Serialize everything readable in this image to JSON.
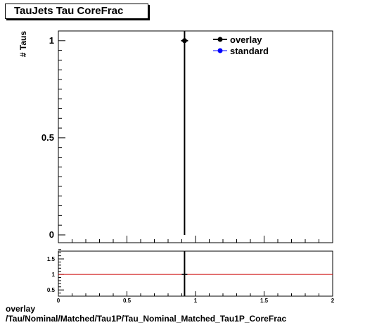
{
  "title": "TauJets Tau CoreFrac",
  "footer": {
    "line1": "overlay",
    "line2": "/Tau/Nominal/Matched/Tau1P/Tau_Nominal_Matched_Tau1P_CoreFrac"
  },
  "colors": {
    "overlay": "#000000",
    "standard": "#0000ff",
    "ratio_line": "#cc0000"
  },
  "chart_data": [
    {
      "type": "scatter",
      "ylabel": "# Taus",
      "xlim": [
        0,
        2
      ],
      "ylim": [
        -0.04,
        1.05
      ],
      "yticks": [
        0,
        0.5,
        1
      ],
      "ytick_labels": [
        "0",
        "0.5",
        "1"
      ],
      "legend": {
        "position": "top-right",
        "entries": [
          "overlay",
          "standard"
        ]
      },
      "series": [
        {
          "name": "overlay",
          "x": [
            0.92
          ],
          "y": [
            1
          ],
          "yerr_low": [
            1
          ],
          "yerr_high": [
            0.3
          ]
        },
        {
          "name": "standard",
          "x": [
            0.92
          ],
          "y": [
            1
          ]
        }
      ]
    },
    {
      "type": "line",
      "xlim": [
        0,
        2
      ],
      "ylim": [
        0.3,
        1.75
      ],
      "xticks": [
        0,
        0.5,
        1,
        1.5,
        2
      ],
      "xtick_labels": [
        "0",
        "0.5",
        "1",
        "1.5",
        "2"
      ],
      "yticks": [
        0.5,
        1,
        1.5
      ],
      "ytick_labels": [
        "0.5",
        "1",
        "1.5"
      ],
      "reference_line": 1,
      "series": [
        {
          "name": "ratio",
          "x": [
            0.92
          ],
          "y": [
            1
          ]
        }
      ]
    }
  ]
}
